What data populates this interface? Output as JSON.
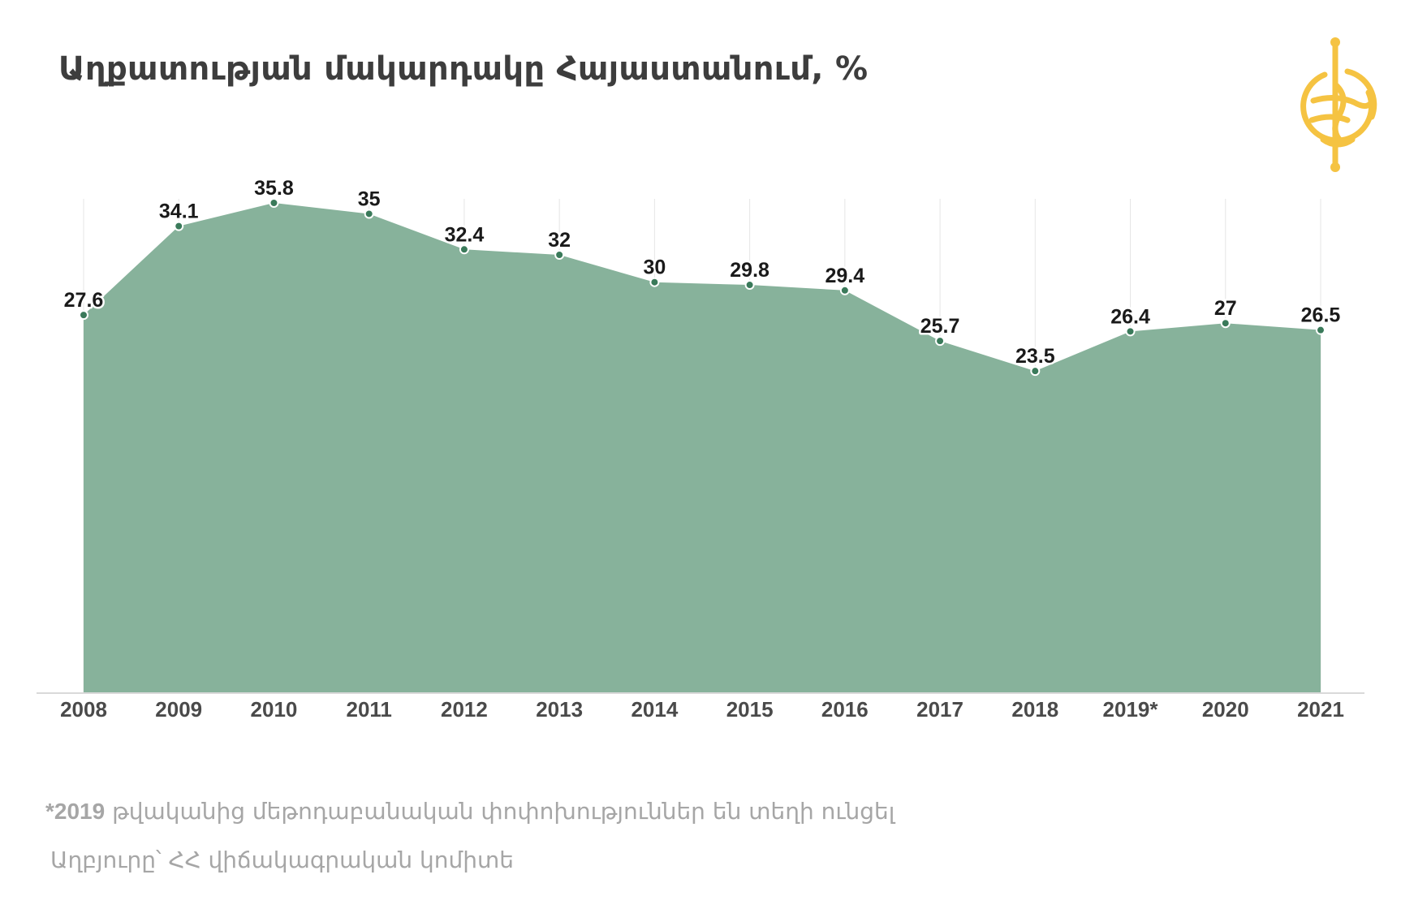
{
  "title": "Աղքատության մակարդակը Հայաստանում, %",
  "footnote": {
    "mark": "*2019",
    "text": " թվականից մեթոդաբանական փոփոխություններ են տեղի ունցել"
  },
  "source": "Աղբյուրը՝ ՀՀ վիճակագրական կոմիտե",
  "colors": {
    "area": "#87b29b",
    "marker_fill": "#3a7a5a",
    "logo": "#f5c342",
    "gridline": "#e6e6e6",
    "baseline": "#d9d9d9"
  },
  "logo_icon": "globe-logo-icon",
  "chart_data": {
    "type": "area",
    "title": "Աղքատության մակարդակը Հայաստանում, %",
    "xlabel": "",
    "ylabel": "",
    "categories": [
      "2008",
      "2009",
      "2010",
      "2011",
      "2012",
      "2013",
      "2014",
      "2015",
      "2016",
      "2017",
      "2018",
      "2019*",
      "2020",
      "2021"
    ],
    "values": [
      27.6,
      34.1,
      35.8,
      35,
      32.4,
      32,
      30,
      29.8,
      29.4,
      25.7,
      23.5,
      26.4,
      27,
      26.5
    ],
    "value_labels": [
      "27.6",
      "34.1",
      "35.8",
      "35",
      "32.4",
      "32",
      "30",
      "29.8",
      "29.4",
      "25.7",
      "23.5",
      "26.4",
      "27",
      "26.5"
    ],
    "ylim": [
      0,
      35.8
    ],
    "grid": "vertical",
    "legend": "none"
  }
}
